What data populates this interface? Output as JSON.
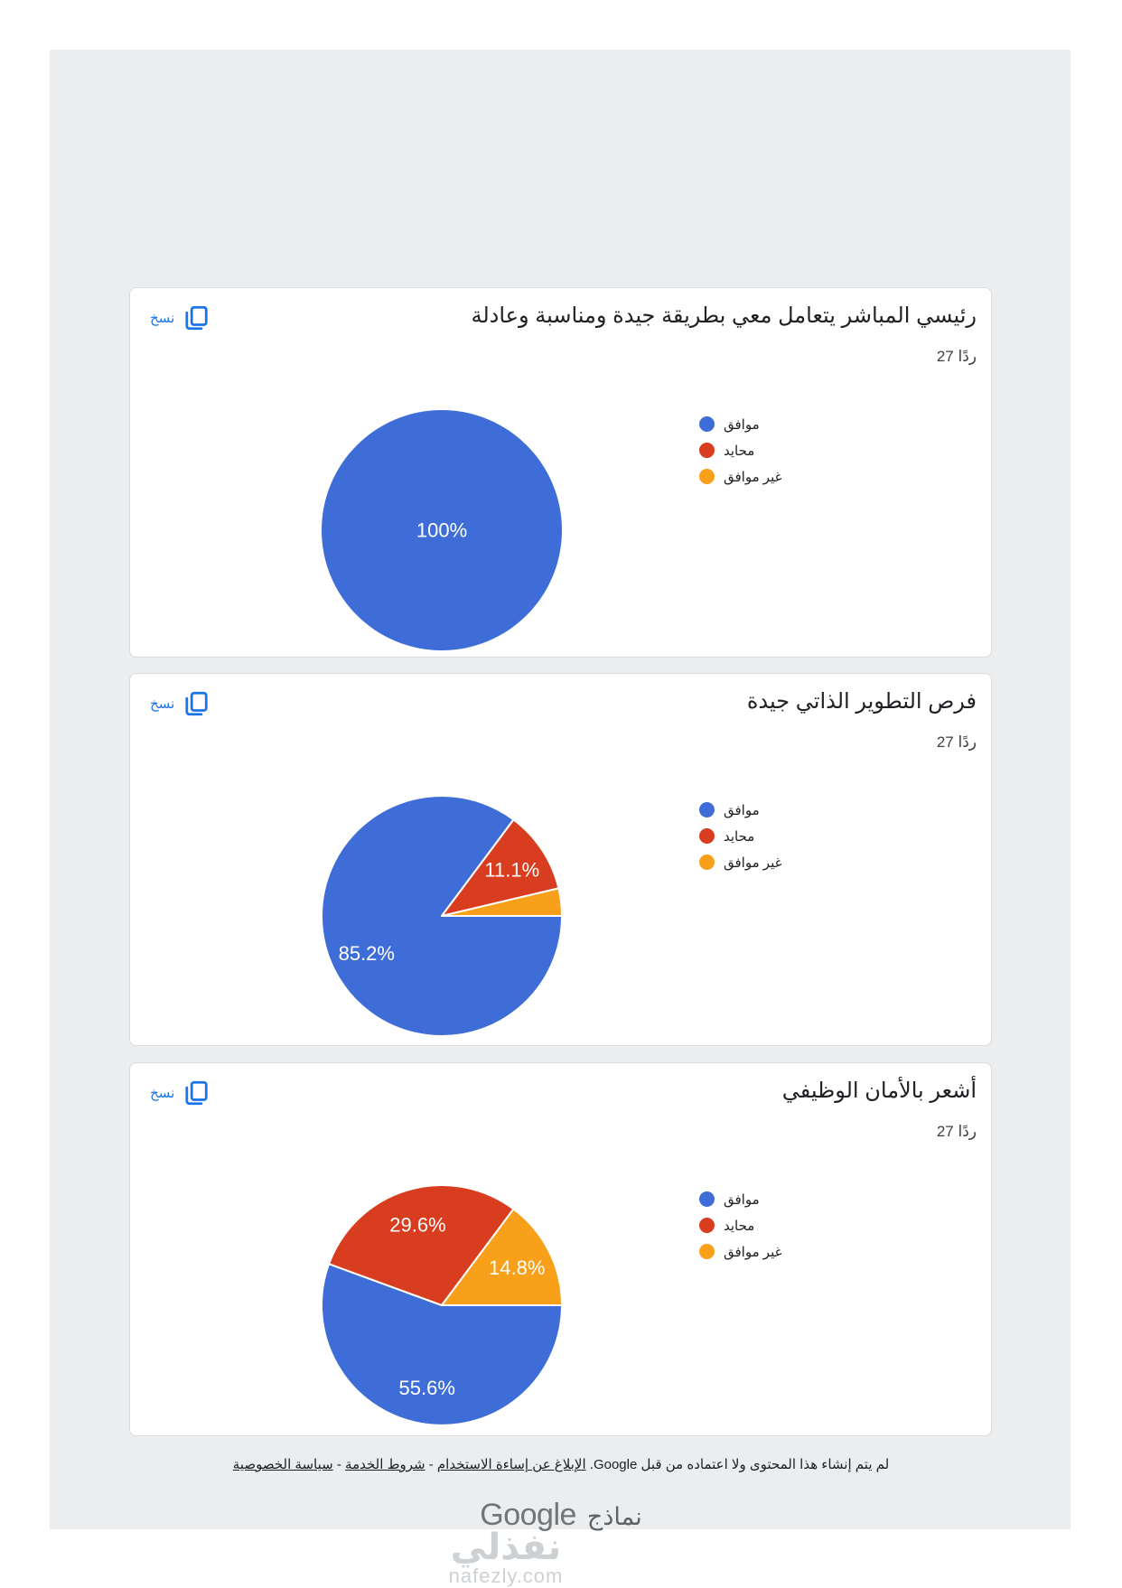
{
  "copy_label": "نسخ",
  "legend_items": [
    "موافق",
    "محايد",
    "غير موافق"
  ],
  "slice_keys": [
    "agree",
    "neutral",
    "disagree"
  ],
  "slice_colors": [
    "#3e6dd8",
    "#d93d20",
    "#f9a01b"
  ],
  "colors": {
    "link_blue": "#1a73e8",
    "panel_background": "#ebedef",
    "card_border": "#dadce0",
    "pie_label_text": "#ffffff"
  },
  "chart_data": [
    {
      "type": "pie",
      "title": "رئيسي المباشر يتعامل معي بطريقة جيدة ومناسبة وعادلة",
      "responses_label": "27 ردًا",
      "categories": [
        "موافق",
        "محايد",
        "غير موافق"
      ],
      "values": [
        100,
        0,
        0
      ],
      "slice_labels": [
        "100%",
        "",
        ""
      ],
      "legend_position": "right",
      "start_angle": "3-oclock-clockwise"
    },
    {
      "type": "pie",
      "title": "فرص التطوير الذاتي جيدة",
      "responses_label": "27 ردًا",
      "categories": [
        "موافق",
        "محايد",
        "غير موافق"
      ],
      "values": [
        85.2,
        11.1,
        3.7
      ],
      "slice_labels": [
        "85.2%",
        "11.1%",
        ""
      ],
      "legend_position": "right",
      "start_angle": "3-oclock-clockwise"
    },
    {
      "type": "pie",
      "title": "أشعر بالأمان الوظيفي",
      "responses_label": "27 ردًا",
      "categories": [
        "موافق",
        "محايد",
        "غير موافق"
      ],
      "values": [
        55.6,
        29.6,
        14.8
      ],
      "slice_labels": [
        "55.6%",
        "29.6%",
        "14.8%"
      ],
      "legend_position": "right",
      "start_angle": "3-oclock-clockwise"
    }
  ],
  "footer": {
    "disclaimer": "لم يتم إنشاء هذا المحتوى ولا اعتماده من قبل Google.",
    "links": [
      "الإبلاغ عن إساءة الاستخدام",
      "شروط الخدمة",
      "سياسة الخصوصية"
    ],
    "separator": "-",
    "google_logo": "Google",
    "forms_label": "نماذج"
  },
  "watermark": {
    "arabic": "نفذلي",
    "domain": "nafezly.com"
  }
}
